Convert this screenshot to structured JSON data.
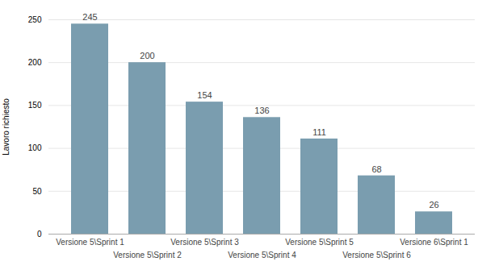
{
  "chart_data": {
    "type": "bar",
    "categories": [
      "Versione 5\\Sprint 1",
      "Versione 5\\Sprint 2",
      "Versione 5\\Sprint 3",
      "Versione 5\\Sprint 4",
      "Versione 5\\Sprint 5",
      "Versione 5\\Sprint 6",
      "Versione 6\\Sprint 1"
    ],
    "values": [
      245,
      200,
      154,
      136,
      111,
      68,
      26
    ],
    "color": "#7a9daf",
    "ylabel": "Lavoro richiesto",
    "ylim": [
      0,
      250
    ],
    "yticks": [
      0,
      50,
      100,
      150,
      200,
      250
    ],
    "grid": true,
    "data_labels": true
  }
}
